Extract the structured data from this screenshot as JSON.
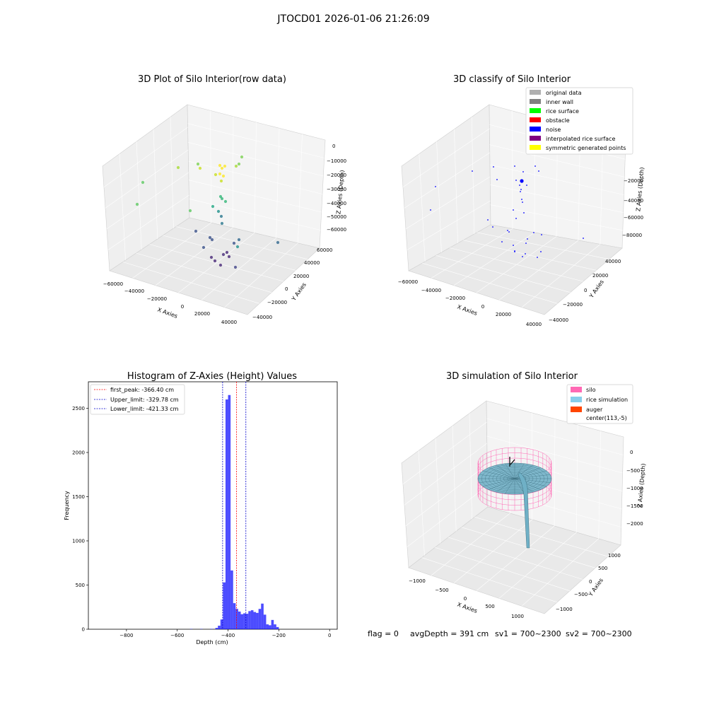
{
  "suptitle": "JTOCD01 2026-01-06 21:26:09",
  "footer": {
    "flag": "flag = 0",
    "avg_depth": "avgDepth = 391 cm",
    "sv1": "sv1 = 700~2300",
    "sv2": "sv2 = 700~2300"
  },
  "chart_data": [
    {
      "type": "scatter",
      "title": "3D Plot of Silo Interior(row data)",
      "xlabel": "X Axies",
      "ylabel": "Y Axies",
      "zlabel": "Z Axies (Depth)",
      "x_ticks": [
        "−60000",
        "−40000",
        "−20000",
        "0",
        "20000",
        "40000"
      ],
      "y_ticks": [
        "−40000",
        "−20000",
        "0",
        "20000",
        "40000",
        "60000"
      ],
      "z_ticks": [
        "0",
        "−10000",
        "−20000",
        "−30000",
        "−40000",
        "−50000",
        "−60000"
      ],
      "colormap": "viridis (by depth)"
    },
    {
      "type": "scatter",
      "title": "3D classify of Silo Interior",
      "xlabel": "X Axies",
      "ylabel": "Y Axies",
      "zlabel": "Z Axies (Depth)",
      "x_ticks": [
        "−60000",
        "−40000",
        "−20000",
        "0",
        "20000",
        "40000"
      ],
      "y_ticks": [
        "−40000",
        "−20000",
        "0",
        "20000",
        "40000"
      ],
      "z_ticks": [
        "−20000",
        "−40000",
        "−60000",
        "−80000"
      ],
      "legend_position": "top-right",
      "legend": [
        {
          "label": "original data",
          "color": "#b0b0b0"
        },
        {
          "label": "inner wall",
          "color": "#808080"
        },
        {
          "label": "rice surface",
          "color": "#00ff00"
        },
        {
          "label": "obstacle",
          "color": "#ff0000"
        },
        {
          "label": "noise",
          "color": "#0000ff"
        },
        {
          "label": "interpolated rice surface",
          "color": "#800080"
        },
        {
          "label": "symmetric generated points",
          "color": "#ffff00"
        }
      ]
    },
    {
      "type": "bar",
      "title": "Histogram of Z-Axies (Height) Values",
      "xlabel": "Depth (cm)",
      "ylabel": "Frequency",
      "xlim": [
        -950,
        30
      ],
      "ylim": [
        0,
        2800
      ],
      "x_ticks": [
        -800,
        -600,
        -400,
        -200,
        0
      ],
      "x_tick_labels": [
        "−800",
        "−600",
        "−400",
        "−200",
        "0"
      ],
      "y_ticks": [
        0,
        500,
        1000,
        1500,
        2000,
        2500
      ],
      "bar_color": "#0000ff",
      "bin_width": 10,
      "bins": [
        {
          "x": -545,
          "v": 3
        },
        {
          "x": -505,
          "v": 3
        },
        {
          "x": -465,
          "v": 4
        },
        {
          "x": -445,
          "v": 15
        },
        {
          "x": -435,
          "v": 40
        },
        {
          "x": -425,
          "v": 110
        },
        {
          "x": -415,
          "v": 530
        },
        {
          "x": -405,
          "v": 2600
        },
        {
          "x": -395,
          "v": 2650
        },
        {
          "x": -385,
          "v": 665
        },
        {
          "x": -375,
          "v": 295
        },
        {
          "x": -365,
          "v": 230
        },
        {
          "x": -355,
          "v": 200
        },
        {
          "x": -345,
          "v": 170
        },
        {
          "x": -335,
          "v": 180
        },
        {
          "x": -325,
          "v": 175
        },
        {
          "x": -315,
          "v": 205
        },
        {
          "x": -305,
          "v": 215
        },
        {
          "x": -295,
          "v": 195
        },
        {
          "x": -285,
          "v": 185
        },
        {
          "x": -275,
          "v": 230
        },
        {
          "x": -265,
          "v": 290
        },
        {
          "x": -255,
          "v": 165
        },
        {
          "x": -245,
          "v": 55
        },
        {
          "x": -235,
          "v": 45
        },
        {
          "x": -225,
          "v": 105
        },
        {
          "x": -215,
          "v": 55
        },
        {
          "x": -205,
          "v": 25
        }
      ],
      "vlines": [
        {
          "label": "first_peak: -366.40 cm",
          "x": -366.4,
          "color": "#ff0000"
        },
        {
          "label": "Upper_limit: -329.78 cm",
          "x": -329.78,
          "color": "#0000cc"
        },
        {
          "label": "Lower_limit: -421.33 cm",
          "x": -421.33,
          "color": "#0000cc"
        }
      ],
      "legend_position": "top-left"
    },
    {
      "type": "area",
      "title": "3D simulation of Silo Interior",
      "xlabel": "X Axies",
      "ylabel": "Y Axies",
      "zlabel": "Z Axies (Depth)",
      "x_ticks": [
        "−1000",
        "−500",
        "0",
        "500",
        "1000"
      ],
      "y_ticks": [
        "−1000",
        "−500",
        "0",
        "500",
        "1000"
      ],
      "z_ticks": [
        "0",
        "−500",
        "−1000",
        "−1500",
        "−2000"
      ],
      "legend_position": "top-right",
      "legend": [
        {
          "label": "silo",
          "color": "#ff69b4"
        },
        {
          "label": "rice simulation",
          "color": "#87ceeb"
        },
        {
          "label": "auger",
          "color": "#ff4500"
        },
        {
          "label": "center(113,-5)",
          "color": ""
        }
      ]
    }
  ]
}
